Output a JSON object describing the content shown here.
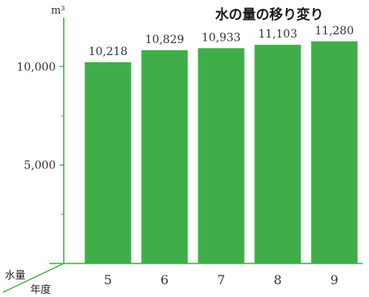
{
  "chart_data": {
    "type": "bar",
    "title": "水の量の移り変り",
    "unit": "m³",
    "categories": [
      "5",
      "6",
      "7",
      "8",
      "9"
    ],
    "values": [
      10218,
      10829,
      10933,
      11103,
      11280
    ],
    "value_labels": [
      "10,218",
      "10,829",
      "10,933",
      "11,103",
      "11,280"
    ],
    "yticks": [
      5000,
      10000
    ],
    "ytick_labels": [
      "5,000",
      "10,000"
    ],
    "ylim": [
      0,
      12000
    ],
    "xlabel": "年度",
    "ylabel": "水量",
    "grid": false,
    "bar_color": "#3fae49",
    "axis_color": "#3fae49"
  }
}
